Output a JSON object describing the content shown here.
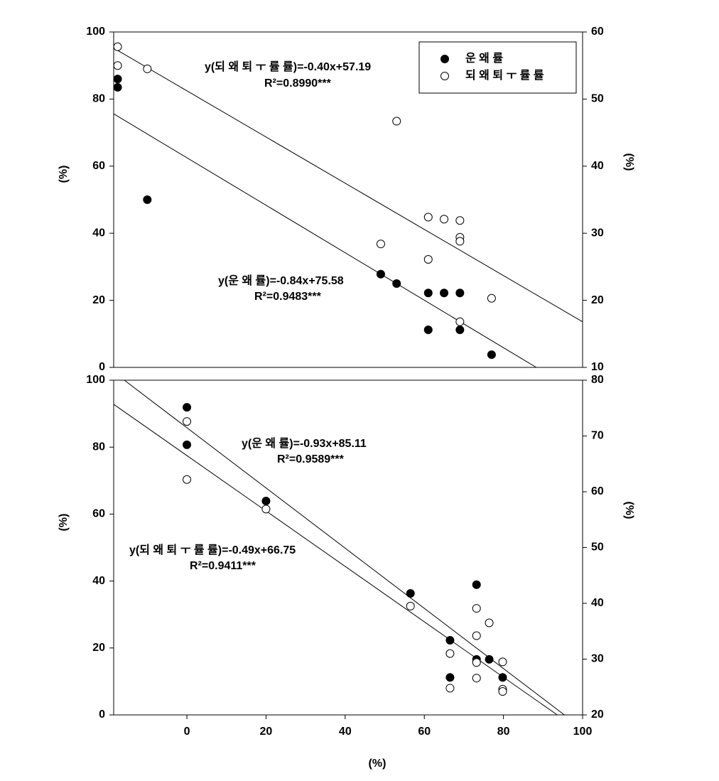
{
  "chart_data": [
    {
      "type": "scatter",
      "legend": true,
      "legend_position": "upper right",
      "ylabel": "(%)",
      "y2label": "(%)",
      "ylim": [
        0,
        100
      ],
      "yticks": [
        0,
        20,
        40,
        60,
        80,
        100
      ],
      "y2lim": [
        10,
        60
      ],
      "y2ticks": [
        10,
        20,
        30,
        40,
        50,
        60
      ],
      "xlim": [
        -18.5,
        100
      ],
      "series": [
        {
          "name": "운 왜 률",
          "color": "#000000",
          "marker": "filled",
          "x": [
            -17.5,
            -17.5,
            -10,
            49,
            53,
            61,
            65,
            69,
            61,
            69,
            77
          ],
          "values": [
            86,
            83.5,
            50,
            27.8,
            25,
            22.2,
            22.2,
            22.2,
            11.2,
            11.2,
            3.8
          ]
        },
        {
          "name": "되 왜 퇴 ㅜ 률 률",
          "color": "#000000",
          "marker": "open",
          "axis": "y2",
          "x": [
            -17.5,
            -17.5,
            -10,
            53,
            49,
            61,
            65,
            69,
            69,
            69,
            61,
            69,
            77
          ],
          "values": [
            57.8,
            55.0,
            54.5,
            46.7,
            28.4,
            32.4,
            32.1,
            31.9,
            29.4,
            28.8,
            26.1,
            16.8,
            20.3
          ]
        }
      ],
      "fit_lines": [
        {
          "x": [
            -18.5,
            88.3
          ],
          "values": [
            75.6,
            0
          ]
        },
        {
          "x": [
            -18.5,
            100
          ],
          "values": [
            57.6,
            16.8
          ],
          "axis": "y2"
        }
      ],
      "annotations": [
        "y(되 왜 퇴 ㅜ 률 률)=-0.40x+57.19",
        "R²=0.8990***",
        "y(운 왜 률)=-0.84x+75.58",
        "R²=0.9483***"
      ]
    },
    {
      "type": "scatter",
      "legend": false,
      "ylabel": "(%)",
      "y2label": "(%)",
      "xlabel": "(%)",
      "ylim": [
        0,
        100
      ],
      "yticks": [
        0,
        20,
        40,
        60,
        80,
        100
      ],
      "y2lim": [
        20,
        80
      ],
      "y2ticks": [
        20,
        30,
        40,
        50,
        60,
        70,
        80
      ],
      "xlim": [
        -18.5,
        100
      ],
      "xticks": [
        0,
        20,
        40,
        60,
        80,
        100
      ],
      "series": [
        {
          "color": "#000000",
          "marker": "filled",
          "x": [
            0,
            0,
            20,
            56.5,
            66.5,
            66.5,
            73.2,
            73.2,
            76.4,
            79.8
          ],
          "values": [
            91.9,
            80.7,
            63.9,
            36.3,
            22.3,
            11.2,
            38.9,
            16.6,
            16.6,
            11.2
          ]
        },
        {
          "color": "#000000",
          "marker": "open",
          "axis": "y2",
          "x": [
            0,
            0,
            20,
            56.5,
            66.5,
            66.5,
            73.2,
            73.2,
            73.2,
            73.2,
            76.4,
            79.8,
            79.8,
            79.8
          ],
          "values": [
            72.6,
            62.2,
            56.9,
            39.5,
            31.0,
            24.8,
            39.1,
            34.2,
            29.4,
            26.6,
            36.5,
            29.5,
            24.6,
            24.2
          ]
        }
      ],
      "fit_lines": [
        {
          "x": [
            -15.8,
            95.4
          ],
          "values": [
            100,
            0
          ]
        },
        {
          "x": [
            -18.5,
            93.6
          ],
          "values": [
            92.8,
            0
          ]
        }
      ],
      "annotations": [
        "y(운 왜 률)=-0.93x+85.11",
        "R²=0.9589***",
        "y(되 왜 퇴 ㅜ 률 률)=-0.49x+66.75",
        "R²=0.9411***"
      ]
    }
  ]
}
